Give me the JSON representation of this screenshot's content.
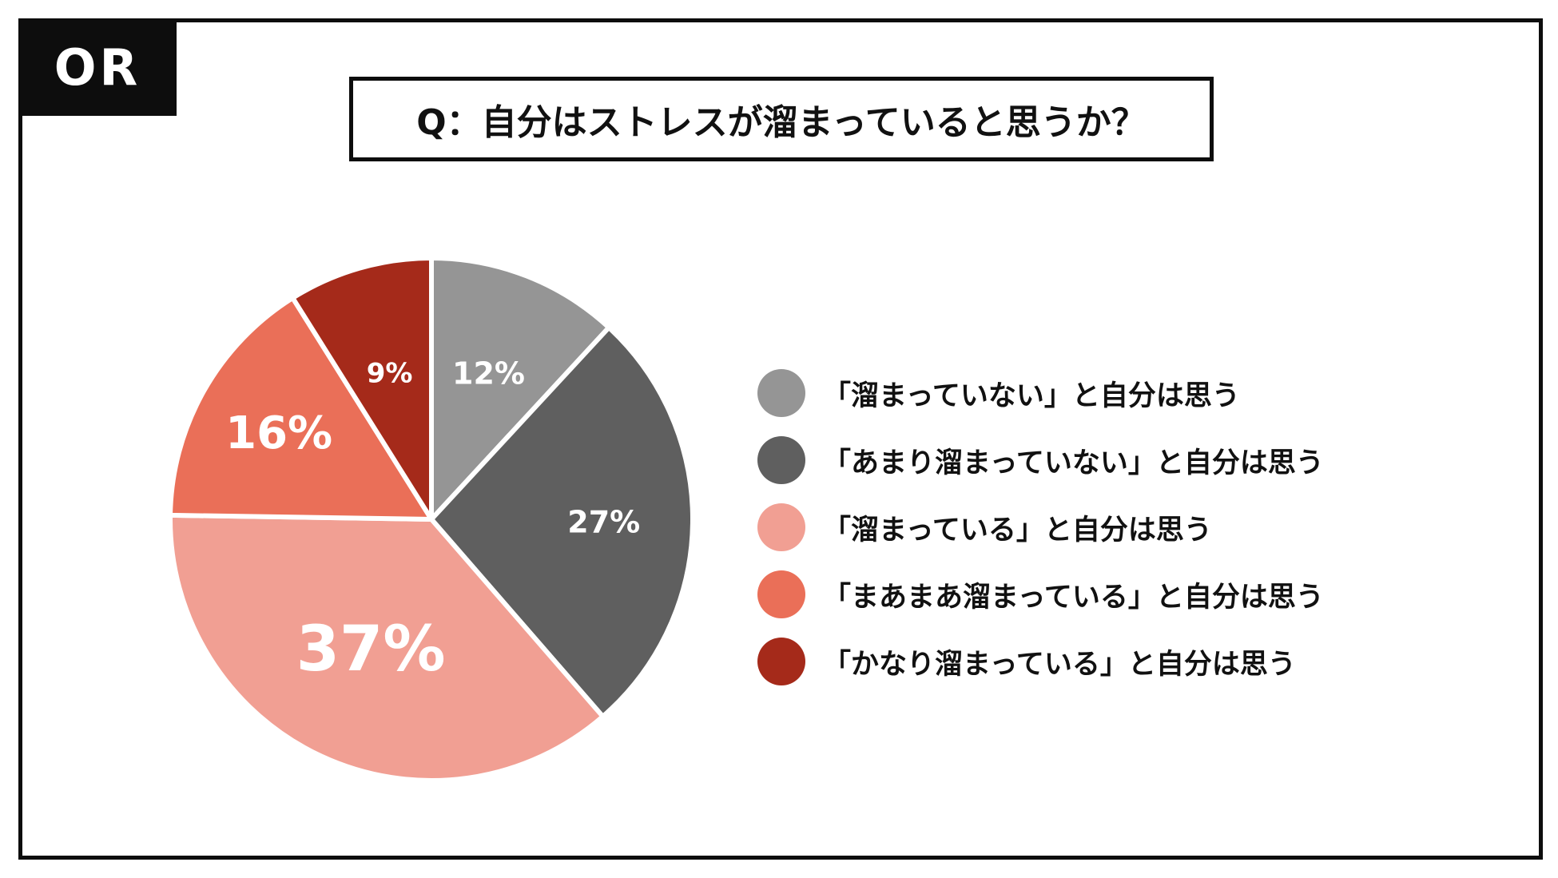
{
  "brand": {
    "logo_text": "OR"
  },
  "chart_data": {
    "type": "pie",
    "title": "Q：自分はストレスが溜まっていると思うか？",
    "slices": [
      {
        "label": "「溜まっていない」と自分は思う",
        "value": 12,
        "display": "12%",
        "color": "#959595"
      },
      {
        "label": "「あまり溜まっていない」と自分は思う",
        "value": 27,
        "display": "27%",
        "color": "#5f5f5f"
      },
      {
        "label": "「溜まっている」と自分は思う",
        "value": 37,
        "display": "37%",
        "color": "#f19f93"
      },
      {
        "label": "「まあまあ溜まっている」と自分は思う",
        "value": 16,
        "display": "16%",
        "color": "#ea6f58"
      },
      {
        "label": "「かなり溜まっている」と自分は思う",
        "value": 9,
        "display": "9%",
        "color": "#a52a1a"
      }
    ],
    "legend_position": "right"
  }
}
